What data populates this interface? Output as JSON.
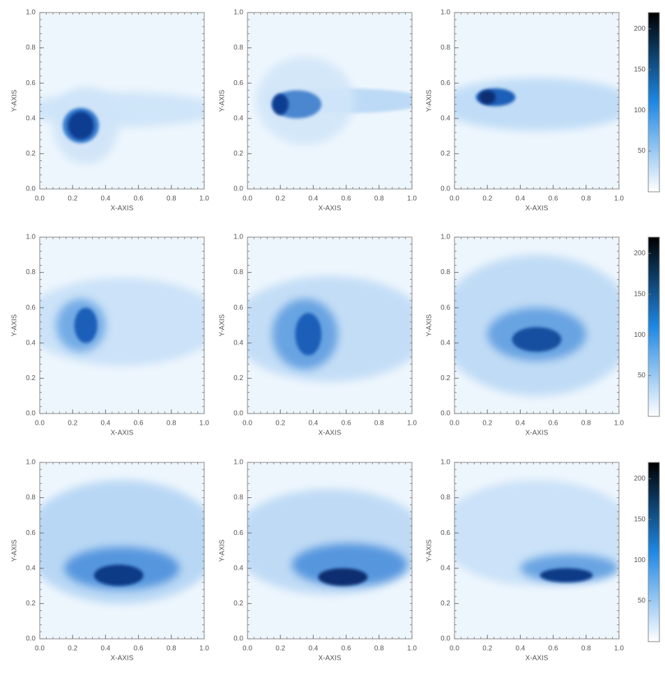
{
  "chart_data": [
    {
      "type": "heatmap",
      "xlabel": "X-AXIS",
      "ylabel": "Y-AXIS",
      "xlim": [
        0,
        1
      ],
      "ylim": [
        0,
        1
      ],
      "xticks": [
        {
          "value": 0,
          "label": "0.0"
        },
        0.2,
        0.4,
        0.6,
        0.8,
        {
          "value": 1,
          "label": "1.0"
        }
      ],
      "yticks": [
        {
          "value": 0,
          "label": "0.0"
        },
        0.2,
        0.4,
        0.6,
        0.8,
        {
          "value": 1,
          "label": "1.0"
        }
      ]
    },
    {
      "type": "heatmap",
      "xlabel": "X-AXIS",
      "ylabel": "Y-AXIS",
      "xlim": [
        0,
        1
      ],
      "ylim": [
        0,
        1
      ],
      "xticks": [
        {
          "value": 0,
          "label": "0.0"
        },
        0.2,
        0.4,
        0.6,
        0.8,
        {
          "value": 1,
          "label": "1.0"
        }
      ],
      "yticks": [
        {
          "value": 0,
          "label": "0.0"
        },
        0.2,
        0.4,
        0.6,
        0.8,
        {
          "value": 1,
          "label": "1.0"
        }
      ]
    },
    {
      "type": "heatmap",
      "xlabel": "X-AXIS",
      "ylabel": "Y-AXIS",
      "xlim": [
        0,
        1
      ],
      "ylim": [
        0,
        1
      ],
      "xticks": [
        {
          "value": 0,
          "label": "0.0"
        },
        0.2,
        0.4,
        0.6,
        0.8,
        {
          "value": 1,
          "label": "1.0"
        }
      ],
      "yticks": [
        {
          "value": 0,
          "label": "0.0"
        },
        0.2,
        0.4,
        0.6,
        0.8,
        {
          "value": 1,
          "label": "1.0"
        }
      ],
      "colorbar": {
        "lim": [
          0,
          220
        ],
        "ticks": [
          50,
          100,
          150,
          200
        ],
        "colormap": [
          "#ffffff",
          "#1e88e5",
          "#000000"
        ]
      }
    },
    {
      "type": "heatmap",
      "xlabel": "X-AXIS",
      "ylabel": "Y-AXIS",
      "xlim": [
        0,
        1
      ],
      "ylim": [
        0,
        1
      ],
      "xticks": [
        {
          "value": 0,
          "label": "0.0"
        },
        0.2,
        0.4,
        0.6,
        0.8,
        {
          "value": 1,
          "label": "1.0"
        }
      ],
      "yticks": [
        {
          "value": 0,
          "label": "0.0"
        },
        0.2,
        0.4,
        0.6,
        0.8,
        {
          "value": 1,
          "label": "1.0"
        }
      ]
    },
    {
      "type": "heatmap",
      "xlabel": "X-AXIS",
      "ylabel": "Y-AXIS",
      "xlim": [
        0,
        1
      ],
      "ylim": [
        0,
        1
      ],
      "xticks": [
        {
          "value": 0,
          "label": "0.0"
        },
        0.2,
        0.4,
        0.6,
        0.8,
        {
          "value": 1,
          "label": "1.0"
        }
      ],
      "yticks": [
        {
          "value": 0,
          "label": "0.0"
        },
        0.2,
        0.4,
        0.6,
        0.8,
        {
          "value": 1,
          "label": "1.0"
        }
      ]
    },
    {
      "type": "heatmap",
      "xlabel": "X-AXIS",
      "ylabel": "Y-AXIS",
      "xlim": [
        0,
        1
      ],
      "ylim": [
        0,
        1
      ],
      "xticks": [
        {
          "value": 0,
          "label": "0.0"
        },
        0.2,
        0.4,
        0.6,
        0.8,
        {
          "value": 1,
          "label": "1.0"
        }
      ],
      "yticks": [
        {
          "value": 0,
          "label": "0.0"
        },
        0.2,
        0.4,
        0.6,
        0.8,
        {
          "value": 1,
          "label": "1.0"
        }
      ],
      "colorbar": {
        "lim": [
          0,
          220
        ],
        "ticks": [
          50,
          100,
          150,
          200
        ],
        "colormap": [
          "#ffffff",
          "#1e88e5",
          "#000000"
        ]
      }
    },
    {
      "type": "heatmap",
      "xlabel": "X-AXIS",
      "ylabel": "Y-AXIS",
      "xlim": [
        0,
        1
      ],
      "ylim": [
        0,
        1
      ],
      "xticks": [
        {
          "value": 0,
          "label": "0.0"
        },
        0.2,
        0.4,
        0.6,
        0.8,
        {
          "value": 1,
          "label": "1.0"
        }
      ],
      "yticks": [
        {
          "value": 0,
          "label": "0.0"
        },
        0.2,
        0.4,
        0.6,
        0.8,
        {
          "value": 1,
          "label": "1.0"
        }
      ]
    },
    {
      "type": "heatmap",
      "xlabel": "X-AXIS",
      "ylabel": "Y-AXIS",
      "xlim": [
        0,
        1
      ],
      "ylim": [
        0,
        1
      ],
      "xticks": [
        {
          "value": 0,
          "label": "0.0"
        },
        0.2,
        0.4,
        0.6,
        0.8,
        {
          "value": 1,
          "label": "1.0"
        }
      ],
      "yticks": [
        {
          "value": 0,
          "label": "0.0"
        },
        0.2,
        0.4,
        0.6,
        0.8,
        {
          "value": 1,
          "label": "1.0"
        }
      ]
    },
    {
      "type": "heatmap",
      "xlabel": "X-AXIS",
      "ylabel": "Y-AXIS",
      "xlim": [
        0,
        1
      ],
      "ylim": [
        0,
        1
      ],
      "xticks": [
        {
          "value": 0,
          "label": "0.0"
        },
        0.2,
        0.4,
        0.6,
        0.8,
        {
          "value": 1,
          "label": "1.0"
        }
      ],
      "yticks": [
        {
          "value": 0,
          "label": "0.0"
        },
        0.2,
        0.4,
        0.6,
        0.8,
        {
          "value": 1,
          "label": "1.0"
        }
      ],
      "colorbar": {
        "lim": [
          0,
          220
        ],
        "ticks": [
          50,
          100,
          150,
          200
        ],
        "colormap": [
          "#ffffff",
          "#1e88e5",
          "#000000"
        ]
      }
    }
  ]
}
